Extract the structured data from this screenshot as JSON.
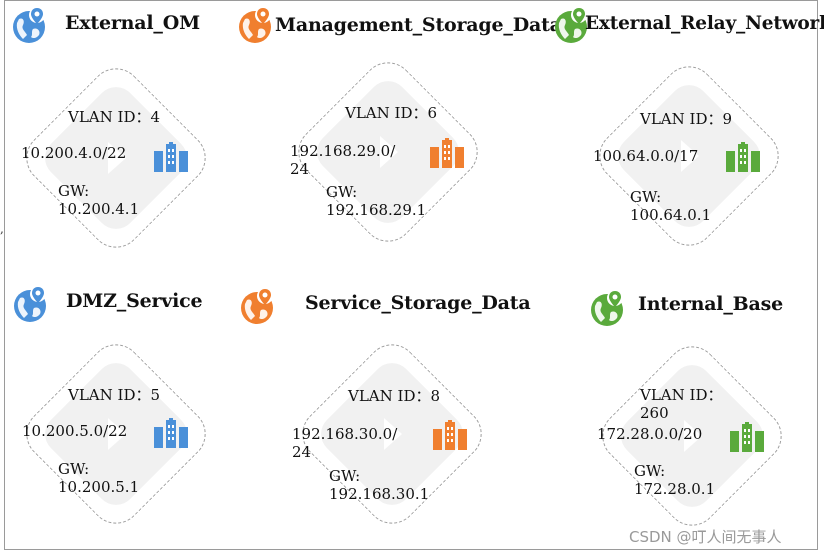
{
  "colors": {
    "blue": "#4a90d9",
    "orange": "#f07f2f",
    "green": "#5aaa3c",
    "diamond_fill": "#f1f1f1",
    "dash": "#9c9c9c"
  },
  "icons": {
    "title_icon": "globe-location-pin-icon",
    "network_icon": "building-icon"
  },
  "networks": [
    {
      "name": "External_OM",
      "vlan_label": "VLAN ID：4",
      "cidr_line1": "10.200.4.0/22",
      "cidr_line2": "",
      "gw_label": "GW:",
      "gw_value": "10.200.4.1",
      "color": "blue"
    },
    {
      "name": "Management_Storage_Data",
      "vlan_label": "VLAN ID：6",
      "cidr_line1": "192.168.29.0/",
      "cidr_line2": "24",
      "gw_label": "GW:",
      "gw_value": "192.168.29.1",
      "color": "orange"
    },
    {
      "name": "External_Relay_Network",
      "vlan_label": "VLAN ID：9",
      "cidr_line1": "100.64.0.0/17",
      "cidr_line2": "",
      "gw_label": "GW:",
      "gw_value": "100.64.0.1",
      "color": "green"
    },
    {
      "name": "DMZ_Service",
      "vlan_label": "VLAN ID：5",
      "cidr_line1": "10.200.5.0/22",
      "cidr_line2": "",
      "gw_label": "GW:",
      "gw_value": "10.200.5.1",
      "color": "blue"
    },
    {
      "name": "Service_Storage_Data",
      "vlan_label": "VLAN ID：8",
      "cidr_line1": "192.168.30.0/",
      "cidr_line2": "24",
      "gw_label": "GW:",
      "gw_value": "192.168.30.1",
      "color": "orange"
    },
    {
      "name": "Internal_Base",
      "vlan_label": "VLAN ID：",
      "vlan_value_line2": "260",
      "cidr_line1": "172.28.0.0/20",
      "cidr_line2": "",
      "gw_label": "GW:",
      "gw_value": "172.28.0.1",
      "color": "green"
    }
  ],
  "stray_mark": ",",
  "watermark": "CSDN @叮人间无事人"
}
